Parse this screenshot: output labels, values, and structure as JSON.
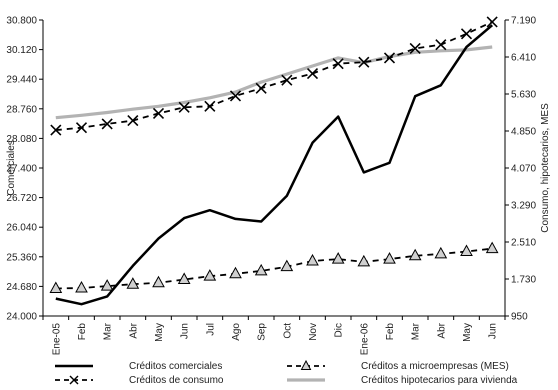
{
  "chart_data": {
    "type": "line",
    "categories": [
      "Ene-05",
      "Feb",
      "Mar",
      "Abr",
      "May",
      "Jun",
      "Jul",
      "Ago",
      "Sep",
      "Oct",
      "Nov",
      "Dic",
      "Ene-06",
      "Feb",
      "Mar",
      "Abr",
      "May",
      "Jun"
    ],
    "ylabel": "Comerciales",
    "y2label": "Consumo, hipotecarios, MES",
    "ylim": [
      24000,
      30800
    ],
    "y2lim": [
      950,
      7190
    ],
    "yticks": [
      "24.000",
      "24.680",
      "25.360",
      "26.040",
      "26.720",
      "27.400",
      "28.080",
      "28.760",
      "29.440",
      "30.120",
      "30.800"
    ],
    "y2ticks": [
      "950",
      "1.730",
      "2.510",
      "3.290",
      "4.070",
      "4.850",
      "5.630",
      "6.410",
      "7.190"
    ],
    "series": [
      {
        "name": "Créditos comerciales",
        "axis": "left",
        "color": "#000000",
        "style": "solid",
        "values": [
          24400,
          24270,
          24450,
          25150,
          25780,
          26250,
          26430,
          26230,
          26170,
          26760,
          27980,
          28580,
          27300,
          27520,
          29050,
          29300,
          30180,
          30680
        ]
      },
      {
        "name": "Créditos a microempresas (MES)",
        "axis": "right",
        "color": "#000000",
        "style": "dashed-triangle",
        "values": [
          1530,
          1540,
          1580,
          1620,
          1650,
          1720,
          1790,
          1840,
          1900,
          1990,
          2110,
          2150,
          2090,
          2150,
          2220,
          2260,
          2310,
          2370
        ]
      },
      {
        "name": "Créditos de consumo",
        "axis": "right",
        "color": "#000000",
        "style": "dashed-x",
        "values": [
          4870,
          4920,
          5000,
          5070,
          5220,
          5350,
          5370,
          5590,
          5750,
          5920,
          6060,
          6270,
          6300,
          6390,
          6590,
          6670,
          6900,
          7150
        ]
      },
      {
        "name": "Créditos hipotecarios para vivienda",
        "axis": "right",
        "color": "#b3b3b3",
        "style": "solid",
        "values": [
          5130,
          5180,
          5240,
          5310,
          5370,
          5450,
          5550,
          5670,
          5880,
          6050,
          6220,
          6390,
          6290,
          6420,
          6510,
          6540,
          6560,
          6620
        ]
      }
    ],
    "legend_position": "bottom"
  }
}
